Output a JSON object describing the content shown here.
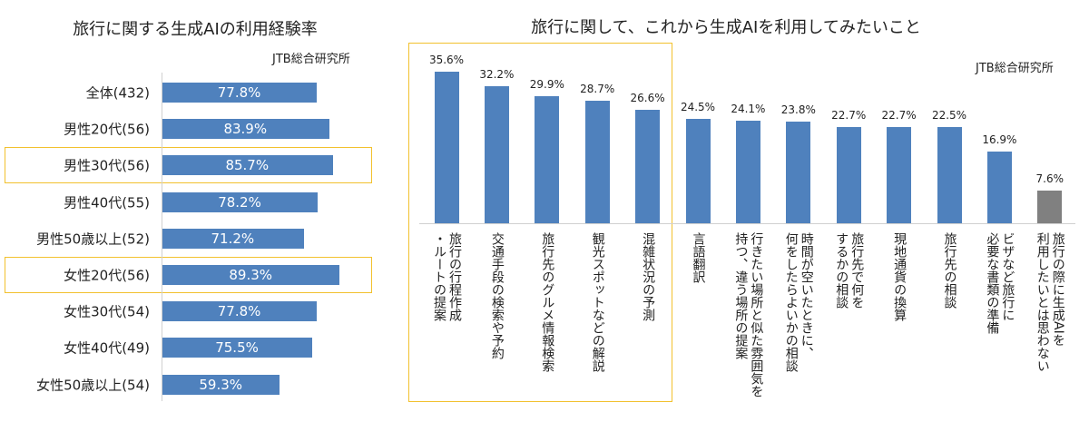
{
  "chart_data": [
    {
      "type": "bar",
      "orientation": "horizontal",
      "title": "旅行に関する生成AIの利用経験率",
      "source": "JTB総合研究所",
      "categories": [
        "全体(432)",
        "男性20代(56)",
        "男性30代(56)",
        "男性40代(55)",
        "男性50歳以上(52)",
        "女性20代(56)",
        "女性30代(54)",
        "女性40代(49)",
        "女性50歳以上(54)"
      ],
      "values": [
        77.8,
        83.9,
        85.7,
        78.2,
        71.2,
        89.3,
        77.8,
        75.5,
        59.3
      ],
      "value_labels": [
        "77.8%",
        "83.9%",
        "85.7%",
        "78.2%",
        "71.2%",
        "89.3%",
        "77.8%",
        "75.5%",
        "59.3%"
      ],
      "highlighted": [
        "男性30代(56)",
        "女性20代(56)"
      ],
      "unit": "%",
      "xlim": [
        0,
        100
      ],
      "grid": false,
      "colors": {
        "bar": "#4f81bd",
        "highlight": "#f2c12e"
      }
    },
    {
      "type": "bar",
      "orientation": "vertical",
      "title": "旅行に関して、これから生成AIを利用してみたいこと",
      "source": "JTB総合研究所",
      "categories": [
        [
          "旅行の行程作成",
          "・ルートの提案"
        ],
        [
          "交通手段の検索や予約"
        ],
        [
          "旅行先のグルメ情報検索"
        ],
        [
          "観光スポットなどの解説"
        ],
        [
          "混雑状況の予測"
        ],
        [
          "言語翻訳"
        ],
        [
          "行きたい場所と似た雰囲気を",
          "持つ、違う場所の提案"
        ],
        [
          "時間が空いたときに、",
          "何をしたらよいかの相談"
        ],
        [
          "旅行先で何を",
          "するかの相談"
        ],
        [
          "現地通貨の換算"
        ],
        [
          "旅行先の相談"
        ],
        [
          "ビザなど旅行に",
          "必要な書類の準備"
        ],
        [
          "旅行の際に生成AIを",
          "利用したいとは思わない"
        ]
      ],
      "values": [
        35.6,
        32.2,
        29.9,
        28.7,
        26.6,
        24.5,
        24.1,
        23.8,
        22.7,
        22.7,
        22.5,
        16.9,
        7.6
      ],
      "value_labels": [
        "35.6%",
        "32.2%",
        "29.9%",
        "28.7%",
        "26.6%",
        "24.5%",
        "24.1%",
        "23.8%",
        "22.7%",
        "22.7%",
        "22.5%",
        "16.9%",
        "7.6%"
      ],
      "highlighted_range": [
        0,
        4
      ],
      "unit": "%",
      "ylim": [
        0,
        40
      ],
      "grid": false,
      "colors": {
        "bar": "#4f81bd",
        "last_bar": "#808080",
        "highlight": "#f2c12e"
      }
    }
  ]
}
